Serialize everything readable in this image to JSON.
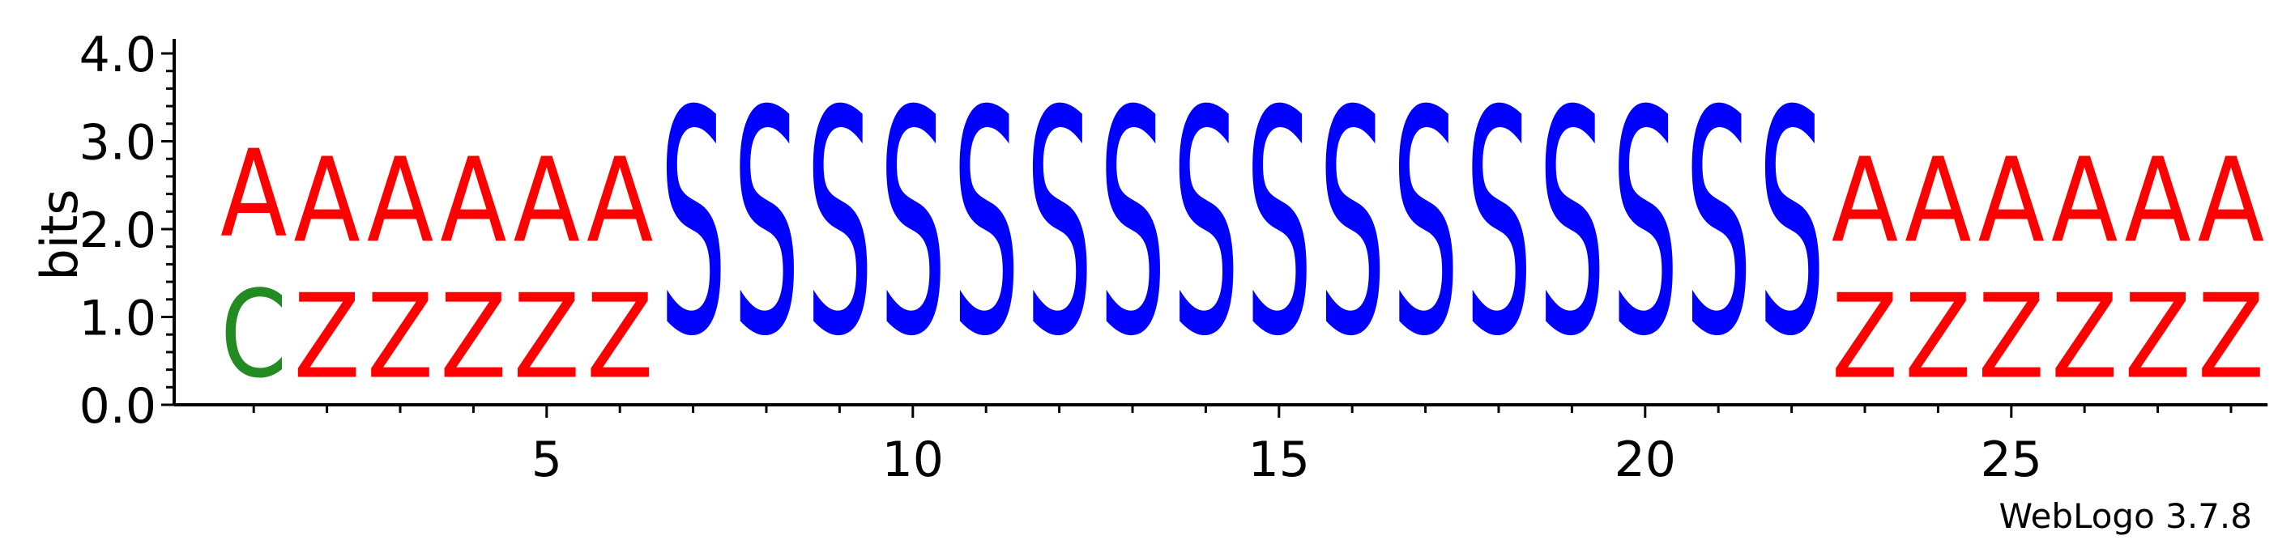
{
  "chart_data": {
    "type": "sequence-logo",
    "ylabel": "bits",
    "ylim": [
      0,
      4.0
    ],
    "y_ticks": [
      "0.0",
      "1.0",
      "2.0",
      "3.0",
      "4.0"
    ],
    "x_ticks": [
      "5",
      "10",
      "15",
      "20",
      "25"
    ],
    "x_tick_positions": [
      5,
      10,
      15,
      20,
      25
    ],
    "positions": [
      {
        "pos": 1,
        "stack": [
          {
            "letter": "C",
            "bits": 1.6
          },
          {
            "letter": "A",
            "bits": 1.6
          }
        ]
      },
      {
        "pos": 2,
        "stack": [
          {
            "letter": "Z",
            "bits": 1.55
          },
          {
            "letter": "A",
            "bits": 1.55
          }
        ]
      },
      {
        "pos": 3,
        "stack": [
          {
            "letter": "Z",
            "bits": 1.55
          },
          {
            "letter": "A",
            "bits": 1.55
          }
        ]
      },
      {
        "pos": 4,
        "stack": [
          {
            "letter": "Z",
            "bits": 1.55
          },
          {
            "letter": "A",
            "bits": 1.55
          }
        ]
      },
      {
        "pos": 5,
        "stack": [
          {
            "letter": "Z",
            "bits": 1.55
          },
          {
            "letter": "A",
            "bits": 1.55
          }
        ]
      },
      {
        "pos": 6,
        "stack": [
          {
            "letter": "Z",
            "bits": 1.55
          },
          {
            "letter": "A",
            "bits": 1.55
          }
        ]
      },
      {
        "pos": 7,
        "stack": [
          {
            "letter": "S",
            "bits": 4.1
          }
        ]
      },
      {
        "pos": 8,
        "stack": [
          {
            "letter": "S",
            "bits": 4.1
          }
        ]
      },
      {
        "pos": 9,
        "stack": [
          {
            "letter": "S",
            "bits": 4.1
          }
        ]
      },
      {
        "pos": 10,
        "stack": [
          {
            "letter": "S",
            "bits": 4.1
          }
        ]
      },
      {
        "pos": 11,
        "stack": [
          {
            "letter": "S",
            "bits": 4.1
          }
        ]
      },
      {
        "pos": 12,
        "stack": [
          {
            "letter": "S",
            "bits": 4.1
          }
        ]
      },
      {
        "pos": 13,
        "stack": [
          {
            "letter": "S",
            "bits": 4.1
          }
        ]
      },
      {
        "pos": 14,
        "stack": [
          {
            "letter": "S",
            "bits": 4.1
          }
        ]
      },
      {
        "pos": 15,
        "stack": [
          {
            "letter": "S",
            "bits": 4.1
          }
        ]
      },
      {
        "pos": 16,
        "stack": [
          {
            "letter": "S",
            "bits": 4.1
          }
        ]
      },
      {
        "pos": 17,
        "stack": [
          {
            "letter": "S",
            "bits": 4.1
          }
        ]
      },
      {
        "pos": 18,
        "stack": [
          {
            "letter": "S",
            "bits": 4.1
          }
        ]
      },
      {
        "pos": 19,
        "stack": [
          {
            "letter": "S",
            "bits": 4.1
          }
        ]
      },
      {
        "pos": 20,
        "stack": [
          {
            "letter": "S",
            "bits": 4.1
          }
        ]
      },
      {
        "pos": 21,
        "stack": [
          {
            "letter": "S",
            "bits": 4.1
          }
        ]
      },
      {
        "pos": 22,
        "stack": [
          {
            "letter": "S",
            "bits": 4.1
          }
        ]
      },
      {
        "pos": 23,
        "stack": [
          {
            "letter": "Z",
            "bits": 1.55
          },
          {
            "letter": "A",
            "bits": 1.55
          }
        ]
      },
      {
        "pos": 24,
        "stack": [
          {
            "letter": "Z",
            "bits": 1.55
          },
          {
            "letter": "A",
            "bits": 1.55
          }
        ]
      },
      {
        "pos": 25,
        "stack": [
          {
            "letter": "Z",
            "bits": 1.55
          },
          {
            "letter": "A",
            "bits": 1.55
          }
        ]
      },
      {
        "pos": 26,
        "stack": [
          {
            "letter": "Z",
            "bits": 1.55
          },
          {
            "letter": "A",
            "bits": 1.55
          }
        ]
      },
      {
        "pos": 27,
        "stack": [
          {
            "letter": "Z",
            "bits": 1.55
          },
          {
            "letter": "A",
            "bits": 1.55
          }
        ]
      },
      {
        "pos": 28,
        "stack": [
          {
            "letter": "Z",
            "bits": 1.55
          },
          {
            "letter": "A",
            "bits": 1.55
          }
        ]
      }
    ],
    "colors": {
      "A": "#ff0000",
      "Z": "#ff0000",
      "S": "#0000ff",
      "C": "#228b22"
    },
    "grid": false,
    "legend": "none"
  },
  "footer": {
    "credit": "WebLogo 3.7.8"
  }
}
